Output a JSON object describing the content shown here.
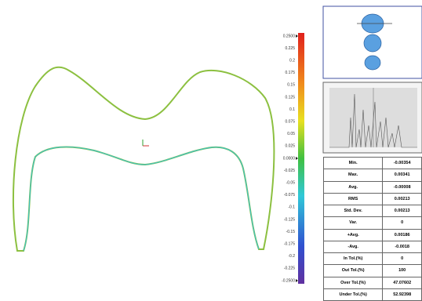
{
  "scale": {
    "labels": [
      "0.2500",
      "0.225",
      "0.2",
      "0.175",
      "0.15",
      "0.125",
      "0.1",
      "0.075",
      "0.05",
      "0.025",
      "0.0000",
      "-0.025",
      "-0.05",
      "-0.075",
      "-0.1",
      "-0.125",
      "-0.15",
      "-0.175",
      "-0.2",
      "-0.225",
      "-0.2500"
    ]
  },
  "table": {
    "rows": [
      [
        "Min.",
        "-0.00354"
      ],
      [
        "Max.",
        "0.00341"
      ],
      [
        "Avg.",
        "-0.00008"
      ],
      [
        "RMS",
        "0.00213"
      ],
      [
        "Std. Dev.",
        "0.00213"
      ],
      [
        "Var.",
        "0"
      ],
      [
        "+Avg.",
        "0.00186"
      ],
      [
        "-Avg.",
        "-0.0018"
      ],
      [
        "In Tol.(%)",
        "0"
      ],
      [
        "Out Tol.(%)",
        "100"
      ],
      [
        "Over Tol.(%)",
        "47.07602"
      ],
      [
        "Under Tol.(%)",
        "52.92398"
      ]
    ]
  }
}
